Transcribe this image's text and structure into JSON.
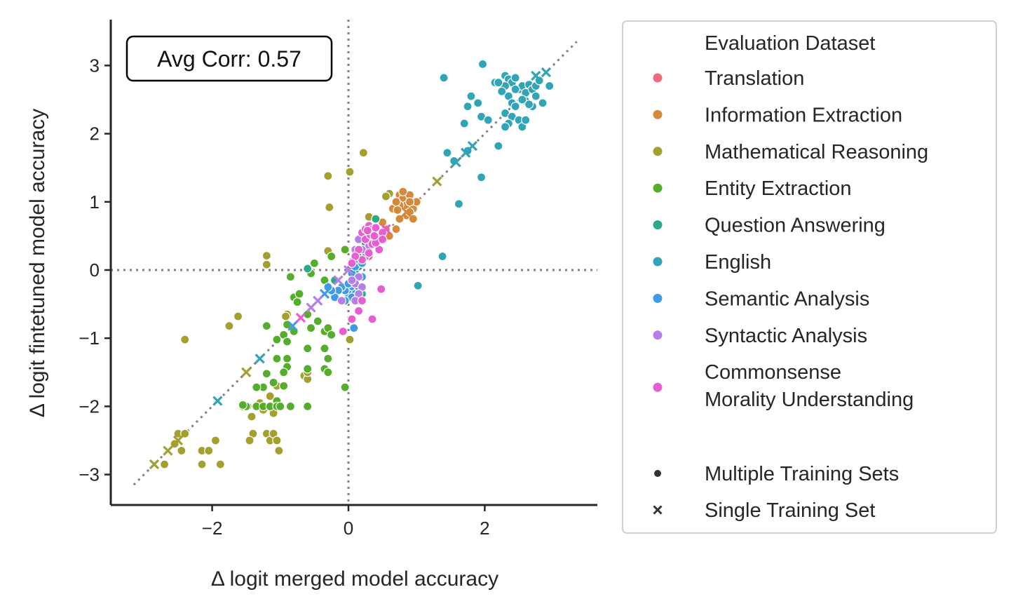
{
  "chart_data": {
    "type": "scatter",
    "xlabel": "Δ logit merged model accuracy",
    "ylabel": "Δ logit fintetuned model accuracy",
    "xlim": [
      -3.5,
      3.6
    ],
    "ylim": [
      -3.5,
      3.65
    ],
    "xticks": [
      -2,
      0,
      2
    ],
    "yticks": [
      -3,
      -2,
      -1,
      0,
      1,
      2,
      3
    ],
    "xtick_labels": [
      "−2",
      "0",
      "2"
    ],
    "ytick_labels": [
      "−3",
      "−2",
      "−1",
      "0",
      "1",
      "2",
      "3"
    ],
    "grid": false,
    "reference_lines": {
      "vertical_x": 0,
      "horizontal_y": 0,
      "diagonal": [
        [
          -3.15,
          -3.15
        ],
        [
          3.35,
          3.35
        ]
      ],
      "style": "dotted",
      "color": "#7f7f7f"
    },
    "annotation": "Avg Corr: 0.57",
    "legend": {
      "placement": "outside-right",
      "hue_title": "Evaluation Dataset",
      "style_entries": [
        {
          "label": "Multiple Training Sets",
          "marker": "dot"
        },
        {
          "label": "Single Training Set",
          "marker": "x"
        }
      ]
    },
    "series": [
      {
        "name": "Translation",
        "color": "#f0697d",
        "points": [
          [
            0.1,
            0.15
          ],
          [
            0.15,
            0.2
          ],
          [
            0.2,
            0.1
          ],
          [
            0.3,
            0.2
          ],
          [
            0.22,
            0.25
          ]
        ],
        "single": [
          [
            0.05,
            0.05
          ]
        ]
      },
      {
        "name": "Information Extraction",
        "color": "#d6893a",
        "points": [
          [
            0.65,
            0.9
          ],
          [
            0.75,
            1.1
          ],
          [
            0.8,
            1.05
          ],
          [
            0.85,
            0.95
          ],
          [
            0.9,
            1.1
          ],
          [
            0.95,
            0.9
          ],
          [
            1.0,
            1.0
          ],
          [
            0.85,
            0.8
          ],
          [
            0.9,
            0.85
          ],
          [
            0.75,
            0.75
          ],
          [
            0.7,
            0.6
          ],
          [
            0.55,
            0.6
          ],
          [
            0.6,
            0.5
          ],
          [
            0.75,
            0.95
          ],
          [
            0.8,
            1.15
          ],
          [
            0.9,
            1.0
          ],
          [
            0.95,
            0.75
          ],
          [
            0.7,
            1.0
          ],
          [
            0.5,
            0.7
          ],
          [
            0.72,
            0.88
          ]
        ],
        "single": [
          [
            0.85,
            0.85
          ]
        ]
      },
      {
        "name": "Mathematical Reasoning",
        "color": "#a3a02f",
        "points": [
          [
            0.22,
            1.72
          ],
          [
            0.02,
            1.44
          ],
          [
            -0.3,
            1.38
          ],
          [
            -0.28,
            0.92
          ],
          [
            -1.2,
            0.21
          ],
          [
            -1.2,
            0.08
          ],
          [
            -1.62,
            -0.68
          ],
          [
            -1.75,
            -0.82
          ],
          [
            -2.4,
            -1.02
          ],
          [
            -0.3,
            0.28
          ],
          [
            -0.05,
            0.3
          ],
          [
            0.3,
            0.78
          ],
          [
            0.6,
            1.12
          ],
          [
            0.55,
            1.08
          ],
          [
            -0.9,
            -0.65
          ],
          [
            -0.92,
            -0.68
          ],
          [
            -1.55,
            -2.0
          ],
          [
            -1.48,
            -2.0
          ],
          [
            -1.42,
            -2.15
          ],
          [
            -1.4,
            -2.4
          ],
          [
            -1.45,
            -2.5
          ],
          [
            -1.2,
            -2.4
          ],
          [
            -1.15,
            -2.5
          ],
          [
            -1.1,
            -2.4
          ],
          [
            -1.05,
            -2.5
          ],
          [
            -1.02,
            -2.65
          ],
          [
            -2.5,
            -2.4
          ],
          [
            -2.4,
            -2.4
          ],
          [
            -2.55,
            -2.55
          ],
          [
            -2.45,
            -2.65
          ],
          [
            -2.7,
            -2.85
          ],
          [
            -2.15,
            -2.65
          ],
          [
            -2.15,
            -2.85
          ],
          [
            -2.05,
            -2.65
          ],
          [
            -1.95,
            -2.5
          ],
          [
            -1.88,
            -2.85
          ],
          [
            -0.65,
            -1.55
          ],
          [
            -0.6,
            -1.6
          ],
          [
            -0.6,
            -1.5
          ],
          [
            0.02,
            -1.02
          ],
          [
            -1.25,
            -2.05
          ],
          [
            -1.1,
            -2.1
          ],
          [
            -1.15,
            -1.85
          ],
          [
            -1.05,
            -1.7
          ],
          [
            -1.3,
            -1.95
          ]
        ],
        "single": [
          [
            -2.85,
            -2.85
          ],
          [
            -2.65,
            -2.65
          ],
          [
            -2.5,
            -2.5
          ],
          [
            -1.5,
            -1.5
          ],
          [
            1.3,
            1.3
          ]
        ]
      },
      {
        "name": "Entity Extraction",
        "color": "#55ad2c",
        "points": [
          [
            -0.05,
            0.3
          ],
          [
            -0.25,
            0.2
          ],
          [
            -0.5,
            0.1
          ],
          [
            -0.55,
            -0.05
          ],
          [
            -0.35,
            -0.15
          ],
          [
            -0.85,
            -0.1
          ],
          [
            -0.8,
            -0.4
          ],
          [
            -0.75,
            -0.47
          ],
          [
            -0.72,
            -0.35
          ],
          [
            -0.6,
            -0.65
          ],
          [
            -0.55,
            -0.85
          ],
          [
            -0.45,
            -0.75
          ],
          [
            -0.35,
            -0.9
          ],
          [
            -0.3,
            -0.85
          ],
          [
            -0.25,
            -0.95
          ],
          [
            -0.9,
            -0.8
          ],
          [
            -0.8,
            -0.9
          ],
          [
            -0.95,
            -0.95
          ],
          [
            -1.05,
            -1.02
          ],
          [
            -0.9,
            -1.05
          ],
          [
            -1.2,
            -0.82
          ],
          [
            -0.6,
            -1.15
          ],
          [
            -0.35,
            -1.15
          ],
          [
            -0.3,
            -1.3
          ],
          [
            -0.35,
            -1.45
          ],
          [
            -0.3,
            -1.5
          ],
          [
            -0.05,
            -1.72
          ],
          [
            -0.6,
            -1.45
          ],
          [
            -0.9,
            -1.3
          ],
          [
            -1.05,
            -1.3
          ],
          [
            -0.9,
            -1.42
          ],
          [
            -0.95,
            -1.5
          ],
          [
            -1.1,
            -1.65
          ],
          [
            -1.25,
            -1.72
          ],
          [
            -1.35,
            -1.72
          ],
          [
            -1.2,
            -1.52
          ],
          [
            -1.05,
            -1.92
          ],
          [
            -1.35,
            -2.0
          ],
          [
            -1.25,
            -2.0
          ],
          [
            -1.15,
            -2.0
          ],
          [
            -1.05,
            -2.0
          ],
          [
            -1.0,
            -2.0
          ],
          [
            -0.85,
            -2.0
          ],
          [
            -0.6,
            -2.0
          ],
          [
            -1.5,
            -2.0
          ],
          [
            -1.55,
            -1.98
          ],
          [
            -0.95,
            -1.7
          ]
        ],
        "single": []
      },
      {
        "name": "Question Answering",
        "color": "#2ea88a",
        "points": [
          [
            0.4,
            0.75
          ],
          [
            0.3,
            0.6
          ],
          [
            0.25,
            0.4
          ],
          [
            0.2,
            0.2
          ],
          [
            0.15,
            0.05
          ],
          [
            0.05,
            0.12
          ],
          [
            -0.6,
            0.02
          ],
          [
            -0.2,
            -0.15
          ],
          [
            0.1,
            -0.05
          ],
          [
            0.15,
            -0.45
          ],
          [
            0.2,
            -0.35
          ]
        ],
        "single": [
          [
            0.25,
            0.25
          ]
        ]
      },
      {
        "name": "English",
        "color": "#2fa5b5",
        "points": [
          [
            1.97,
            3.02
          ],
          [
            2.15,
            2.75
          ],
          [
            2.3,
            2.85
          ],
          [
            2.35,
            2.8
          ],
          [
            2.4,
            2.75
          ],
          [
            2.45,
            2.82
          ],
          [
            2.5,
            2.65
          ],
          [
            2.55,
            2.7
          ],
          [
            2.6,
            2.6
          ],
          [
            2.65,
            2.72
          ],
          [
            2.7,
            2.65
          ],
          [
            2.75,
            2.7
          ],
          [
            2.8,
            2.78
          ],
          [
            2.75,
            2.55
          ],
          [
            2.6,
            2.48
          ],
          [
            2.45,
            2.65
          ],
          [
            2.35,
            2.55
          ],
          [
            2.3,
            2.7
          ],
          [
            2.25,
            2.62
          ],
          [
            2.2,
            2.75
          ],
          [
            1.8,
            2.55
          ],
          [
            1.75,
            2.4
          ],
          [
            1.9,
            2.45
          ],
          [
            1.95,
            2.25
          ],
          [
            2.05,
            2.2
          ],
          [
            2.3,
            2.3
          ],
          [
            2.4,
            2.25
          ],
          [
            2.5,
            2.2
          ],
          [
            2.55,
            2.1
          ],
          [
            2.6,
            2.2
          ],
          [
            2.4,
            2.45
          ],
          [
            2.55,
            2.5
          ],
          [
            2.7,
            2.4
          ],
          [
            2.85,
            2.45
          ],
          [
            2.95,
            2.7
          ],
          [
            2.35,
            2.15
          ],
          [
            1.4,
            2.82
          ],
          [
            1.45,
            1.72
          ],
          [
            1.75,
            1.75
          ],
          [
            1.55,
            1.6
          ],
          [
            2.2,
            1.82
          ],
          [
            1.95,
            1.36
          ],
          [
            1.62,
            0.97
          ],
          [
            1.38,
            0.2
          ],
          [
            1.02,
            -0.23
          ],
          [
            1.7,
            2.15
          ],
          [
            2.3,
            2.1
          ],
          [
            2.45,
            2.4
          ],
          [
            2.65,
            2.43
          ]
        ],
        "single": [
          [
            -1.92,
            -1.92
          ],
          [
            -1.3,
            -1.3
          ],
          [
            1.58,
            1.58
          ],
          [
            1.72,
            1.72
          ],
          [
            1.82,
            1.82
          ],
          [
            2.75,
            2.85
          ],
          [
            2.9,
            2.9
          ]
        ]
      },
      {
        "name": "Semantic Analysis",
        "color": "#3d9be8",
        "points": [
          [
            0.1,
            -0.15
          ],
          [
            0.05,
            -0.25
          ],
          [
            0.0,
            -0.35
          ],
          [
            -0.05,
            -0.3
          ],
          [
            -0.1,
            -0.25
          ],
          [
            -0.15,
            -0.3
          ],
          [
            -0.2,
            -0.4
          ],
          [
            -0.25,
            -0.3
          ],
          [
            -0.3,
            -0.25
          ],
          [
            0.1,
            -0.35
          ],
          [
            0.15,
            -0.25
          ],
          [
            0.05,
            -0.4
          ],
          [
            -0.05,
            -0.45
          ],
          [
            0.2,
            -0.1
          ],
          [
            0.05,
            -0.05
          ],
          [
            0.1,
            0.05
          ],
          [
            0.15,
            0.15
          ],
          [
            0.2,
            0.1
          ],
          [
            0.08,
            -0.85
          ],
          [
            0.0,
            -0.2
          ]
        ],
        "single": [
          [
            -0.82,
            -0.82
          ],
          [
            -0.35,
            -0.35
          ]
        ]
      },
      {
        "name": "Syntactic Analysis",
        "color": "#b87ee8",
        "points": [
          [
            0.15,
            -0.1
          ],
          [
            0.1,
            -0.2
          ],
          [
            0.2,
            -0.25
          ],
          [
            0.15,
            -0.35
          ],
          [
            0.05,
            -0.15
          ],
          [
            0.1,
            -0.45
          ],
          [
            -0.1,
            -0.45
          ],
          [
            0.25,
            0.2
          ],
          [
            0.3,
            0.35
          ],
          [
            0.2,
            0.3
          ],
          [
            0.1,
            0.3
          ],
          [
            0.15,
            0.45
          ]
        ],
        "single": [
          [
            -0.55,
            -0.55
          ],
          [
            -0.45,
            -0.45
          ],
          [
            -0.15,
            -0.15
          ],
          [
            0.0,
            0.0
          ]
        ]
      },
      {
        "name": "Commonsense\nMorality Understanding",
        "color": "#e85ed0",
        "points": [
          [
            0.2,
            0.55
          ],
          [
            0.25,
            0.6
          ],
          [
            0.3,
            0.65
          ],
          [
            0.35,
            0.6
          ],
          [
            0.4,
            0.55
          ],
          [
            0.45,
            0.5
          ],
          [
            0.35,
            0.45
          ],
          [
            0.3,
            0.5
          ],
          [
            0.4,
            0.62
          ],
          [
            0.5,
            0.55
          ],
          [
            0.25,
            0.45
          ],
          [
            0.35,
            0.38
          ],
          [
            0.45,
            0.3
          ],
          [
            0.3,
            0.25
          ],
          [
            0.2,
            0.15
          ],
          [
            0.15,
            0.3
          ],
          [
            0.1,
            0.2
          ],
          [
            0.05,
            0.1
          ],
          [
            0.4,
            0.4
          ],
          [
            0.5,
            0.45
          ],
          [
            0.2,
            -0.45
          ],
          [
            0.15,
            -0.6
          ],
          [
            0.35,
            -0.72
          ],
          [
            0.05,
            -0.72
          ],
          [
            -0.08,
            -0.9
          ],
          [
            0.48,
            -0.28
          ],
          [
            0.32,
            0.52
          ],
          [
            0.28,
            0.58
          ],
          [
            0.38,
            0.5
          ]
        ],
        "single": [
          [
            0.55,
            0.6
          ],
          [
            -0.7,
            -0.7
          ]
        ]
      }
    ]
  }
}
